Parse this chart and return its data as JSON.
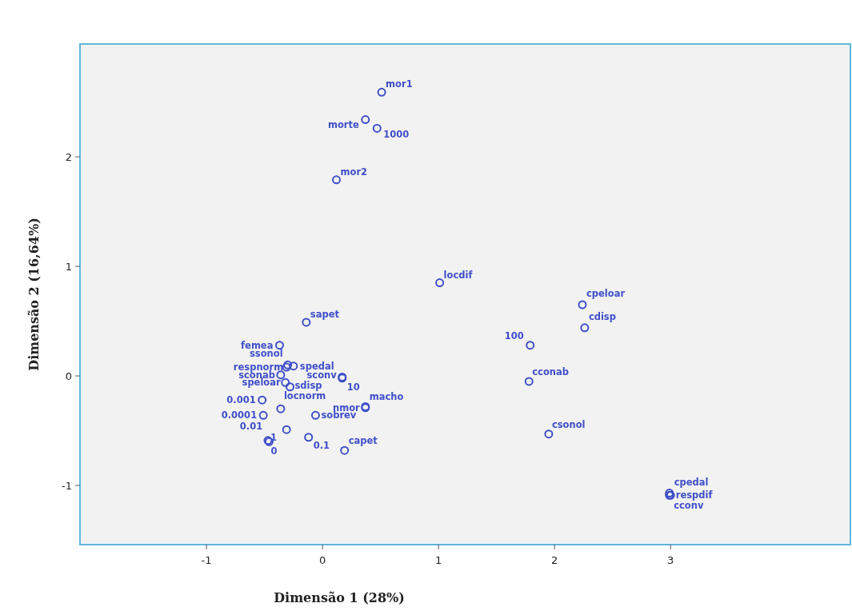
{
  "chart_data": {
    "type": "scatter",
    "xlabel": "Dimensão 1 (28%)",
    "ylabel": "Dimensão 2 (16,64%)",
    "xlim": [
      -2.09,
      4.55
    ],
    "ylim": [
      -1.54,
      3.03
    ],
    "xticks": [
      -1,
      0,
      1,
      2,
      3
    ],
    "yticks": [
      -1,
      0,
      1,
      2
    ],
    "marker": "circle",
    "series": [
      {
        "color": "#3f4fc8",
        "x": [
          0.51,
          0.37,
          0.47,
          0.12,
          1.01,
          -0.14,
          -0.37,
          -0.3,
          -0.31,
          -0.25,
          -0.36,
          -0.32,
          -0.28,
          0.17,
          0.17,
          0.37,
          0.37,
          -0.52,
          -0.36,
          -0.51,
          -0.06,
          -0.31,
          -0.47,
          -0.46,
          -0.12,
          0.19,
          2.24,
          2.26,
          1.79,
          1.78,
          1.95,
          2.99,
          2.99,
          3.0
        ],
        "values": [
          2.59,
          2.34,
          2.26,
          1.79,
          0.85,
          0.49,
          0.28,
          0.1,
          0.08,
          0.09,
          0.01,
          -0.06,
          -0.1,
          -0.01,
          -0.02,
          -0.28,
          -0.29,
          -0.22,
          -0.3,
          -0.36,
          -0.36,
          -0.49,
          -0.59,
          -0.6,
          -0.56,
          -0.68,
          0.65,
          0.44,
          0.28,
          -0.05,
          -0.53,
          -1.07,
          -1.09,
          -1.09
        ]
      }
    ],
    "annotations": [
      {
        "text": "mor1",
        "x": 0.51,
        "y": 2.59
      },
      {
        "text": "morte",
        "x": 0.37,
        "y": 2.34
      },
      {
        "text": "1000",
        "x": 0.47,
        "y": 2.26
      },
      {
        "text": "mor2",
        "x": 0.12,
        "y": 1.79
      },
      {
        "text": "locdif",
        "x": 1.01,
        "y": 0.85
      },
      {
        "text": "sapet",
        "x": -0.14,
        "y": 0.49
      },
      {
        "text": "femea",
        "x": -0.37,
        "y": 0.28
      },
      {
        "text": "ssonol",
        "x": -0.3,
        "y": 0.1
      },
      {
        "text": "respnorm",
        "x": -0.31,
        "y": 0.08
      },
      {
        "text": "spedal",
        "x": -0.25,
        "y": 0.09
      },
      {
        "text": "sconab",
        "x": -0.36,
        "y": 0.01
      },
      {
        "text": "speloar",
        "x": -0.32,
        "y": -0.06
      },
      {
        "text": "sdisp",
        "x": -0.28,
        "y": -0.1
      },
      {
        "text": "sconv",
        "x": 0.17,
        "y": -0.01
      },
      {
        "text": "10",
        "x": 0.17,
        "y": -0.02
      },
      {
        "text": "macho",
        "x": 0.37,
        "y": -0.28
      },
      {
        "text": "nmor",
        "x": 0.37,
        "y": -0.29
      },
      {
        "text": "0.001",
        "x": -0.52,
        "y": -0.22
      },
      {
        "text": "locnorm",
        "x": -0.36,
        "y": -0.3
      },
      {
        "text": "0.0001",
        "x": -0.51,
        "y": -0.36
      },
      {
        "text": "sobrev",
        "x": -0.06,
        "y": -0.36
      },
      {
        "text": "0.01",
        "x": -0.31,
        "y": -0.49
      },
      {
        "text": "1",
        "x": -0.47,
        "y": -0.59
      },
      {
        "text": "0",
        "x": -0.46,
        "y": -0.6
      },
      {
        "text": "0.1",
        "x": -0.12,
        "y": -0.56
      },
      {
        "text": "capet",
        "x": 0.19,
        "y": -0.68
      },
      {
        "text": "cpeloar",
        "x": 2.24,
        "y": 0.65
      },
      {
        "text": "cdisp",
        "x": 2.26,
        "y": 0.44
      },
      {
        "text": "100",
        "x": 1.79,
        "y": 0.28
      },
      {
        "text": "cconab",
        "x": 1.78,
        "y": -0.05
      },
      {
        "text": "csonol",
        "x": 1.95,
        "y": -0.53
      },
      {
        "text": "cpedal",
        "x": 2.99,
        "y": -1.07
      },
      {
        "text": "respdif",
        "x": 2.99,
        "y": -1.09
      },
      {
        "text": "cconv",
        "x": 3.0,
        "y": -1.09
      }
    ]
  }
}
